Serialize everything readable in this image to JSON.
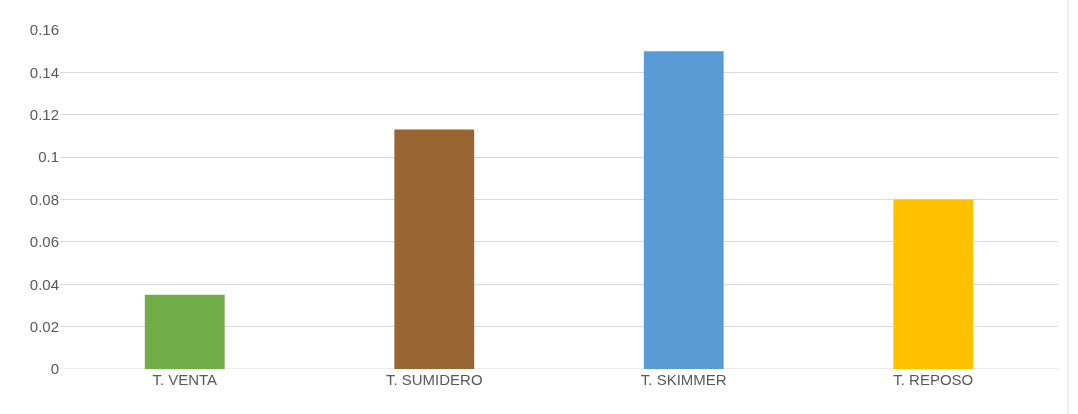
{
  "chart_data": {
    "type": "bar",
    "categories": [
      "T. VENTA",
      "T. SUMIDERO",
      "T. SKIMMER",
      "T. REPOSO"
    ],
    "values": [
      0.035,
      0.113,
      0.15,
      0.08
    ],
    "colors": [
      "#70ad47",
      "#996633",
      "#5b9bd5",
      "#ffc000"
    ],
    "ylim": [
      0,
      0.16
    ],
    "yticks": [
      0,
      0.02,
      0.04,
      0.06,
      0.08,
      0.1,
      0.12,
      0.14,
      0.16
    ],
    "grid": "y",
    "legend": false
  }
}
